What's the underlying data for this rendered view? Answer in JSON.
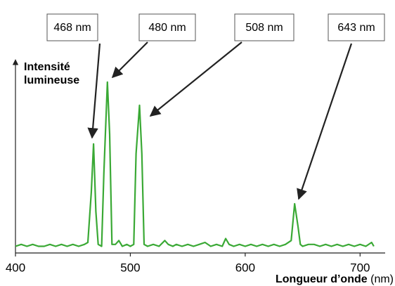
{
  "chart_data": {
    "type": "line",
    "annotations": [
      "468 nm",
      "480 nm",
      "508 nm",
      "643 nm"
    ],
    "ylabel": [
      "Intensité",
      "lumineuse"
    ],
    "xlabel": "Longueur d’onde",
    "xunit": "(nm)",
    "x": [
      400,
      405,
      410,
      415,
      420,
      425,
      430,
      435,
      440,
      445,
      450,
      455,
      460,
      463,
      466,
      468,
      470,
      472,
      475,
      477,
      480,
      482,
      484,
      487,
      490,
      493,
      497,
      500,
      503,
      505,
      508,
      510,
      512,
      515,
      520,
      525,
      530,
      533,
      537,
      540,
      545,
      550,
      555,
      560,
      565,
      570,
      575,
      580,
      583,
      586,
      590,
      595,
      600,
      605,
      610,
      615,
      620,
      625,
      630,
      635,
      640,
      643,
      646,
      648,
      650,
      655,
      660,
      665,
      670,
      675,
      680,
      685,
      690,
      695,
      700,
      705,
      710,
      712
    ],
    "series": [
      {
        "color": "#3aa935",
        "values": [
          2,
          3,
          2,
          3,
          2,
          2,
          3,
          2,
          3,
          2,
          3,
          2,
          3,
          4,
          30,
          55,
          20,
          3,
          2,
          40,
          87,
          60,
          3,
          3,
          5,
          2,
          3,
          2,
          3,
          50,
          75,
          50,
          3,
          2,
          3,
          2,
          5,
          3,
          2,
          3,
          2,
          3,
          2,
          3,
          4,
          2,
          3,
          2,
          6,
          3,
          2,
          3,
          2,
          3,
          2,
          3,
          2,
          3,
          2,
          3,
          5,
          24,
          12,
          3,
          2,
          3,
          3,
          2,
          3,
          2,
          3,
          2,
          3,
          2,
          3,
          2,
          4,
          2
        ]
      }
    ],
    "xlim": [
      400,
      720
    ],
    "ylim": [
      0,
      100
    ],
    "xticks": [
      400,
      500,
      600,
      700
    ]
  }
}
